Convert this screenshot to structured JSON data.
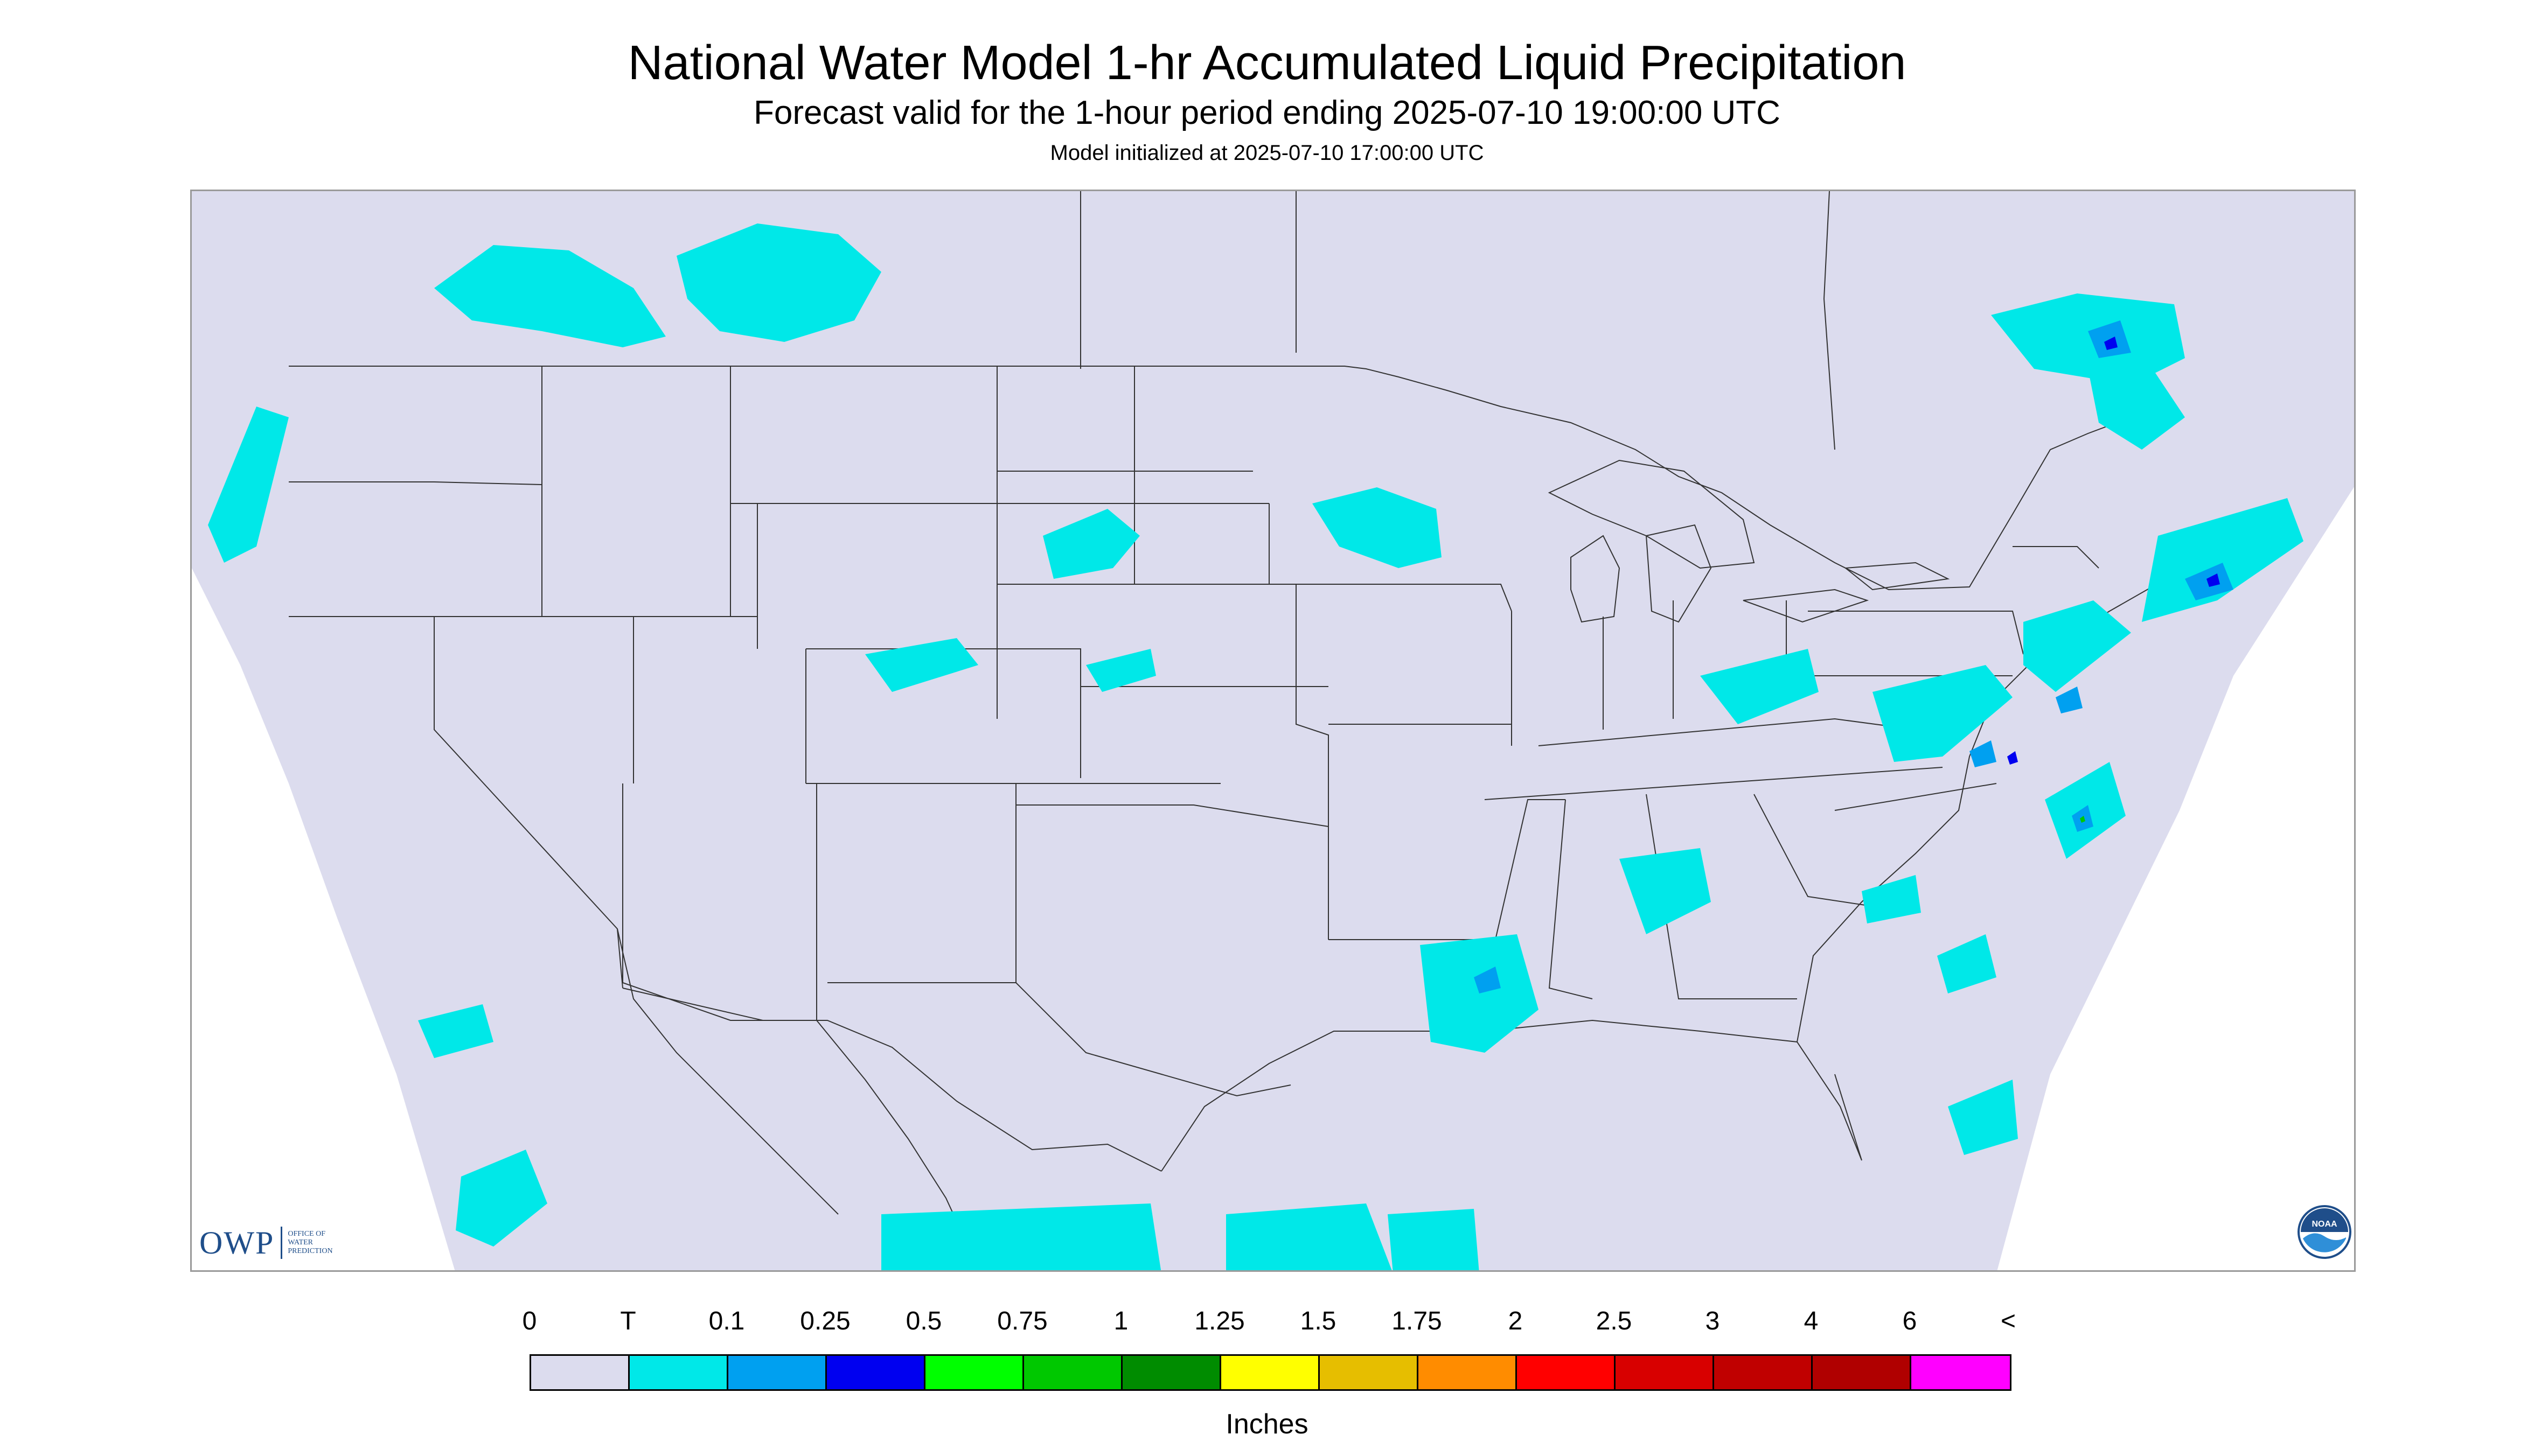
{
  "title": "National Water Model 1-hr Accumulated Liquid Precipitation",
  "subtitle": "Forecast valid for the 1-hour period ending 2025-07-10 19:00:00 UTC",
  "init_line": "Model initialized at 2025-07-10 17:00:00 UTC",
  "map": {
    "region": "contiguous-united-states",
    "background_color": "#dcdcee",
    "outside_domain_color": "#ffffff",
    "boundary_color": "#333333",
    "trace_color": "#00e8e8",
    "light_rain_color": "#00a0f0",
    "heavy_rain_color": "#0000f0"
  },
  "owp_logo": {
    "mark": "OWP",
    "line1": "Office of",
    "line2": "Water",
    "line3": "Prediction"
  },
  "noaa_logo": {
    "text": "NOAA"
  },
  "legend": {
    "tick_labels": [
      "0",
      "T",
      "0.1",
      "0.25",
      "0.5",
      "0.75",
      "1",
      "1.25",
      "1.5",
      "1.75",
      "2",
      "2.5",
      "3",
      "4",
      "6",
      "<"
    ],
    "colors": [
      "#dcdcee",
      "#00e8e8",
      "#00a0f0",
      "#0000f0",
      "#00ff00",
      "#00c800",
      "#008c00",
      "#ffff00",
      "#e6be00",
      "#ff8c00",
      "#ff0000",
      "#d80000",
      "#c00000",
      "#b00000",
      "#ff00ff",
      "#9955c8"
    ],
    "units": "Inches"
  }
}
